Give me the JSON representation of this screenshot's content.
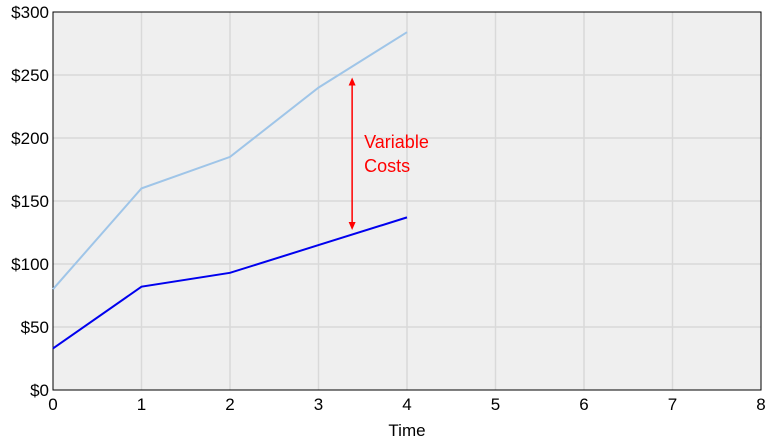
{
  "chart_data": {
    "type": "line",
    "xlabel": "Time",
    "ylabel": "",
    "xlim": [
      0,
      8
    ],
    "ylim": [
      0,
      300
    ],
    "x_ticks": [
      0,
      1,
      2,
      3,
      4,
      5,
      6,
      7,
      8
    ],
    "y_ticks": [
      0,
      50,
      100,
      150,
      200,
      250,
      300
    ],
    "y_tick_prefix": "$",
    "grid": true,
    "series": [
      {
        "x": [
          0,
          1,
          2,
          3,
          4
        ],
        "values": [
          80,
          160,
          185,
          240,
          284
        ],
        "color": "#9fc5e8"
      },
      {
        "x": [
          0,
          1,
          2,
          3,
          4
        ],
        "values": [
          33,
          82,
          93,
          115,
          137
        ],
        "color": "#0000ee"
      }
    ],
    "annotation": {
      "lines": [
        "Variable",
        "Costs"
      ],
      "x": 3.38,
      "y_from": 127,
      "y_to": 248,
      "color": "#ff0000"
    },
    "background_color": "#efefef",
    "grid_color": "#d9d9d9"
  }
}
